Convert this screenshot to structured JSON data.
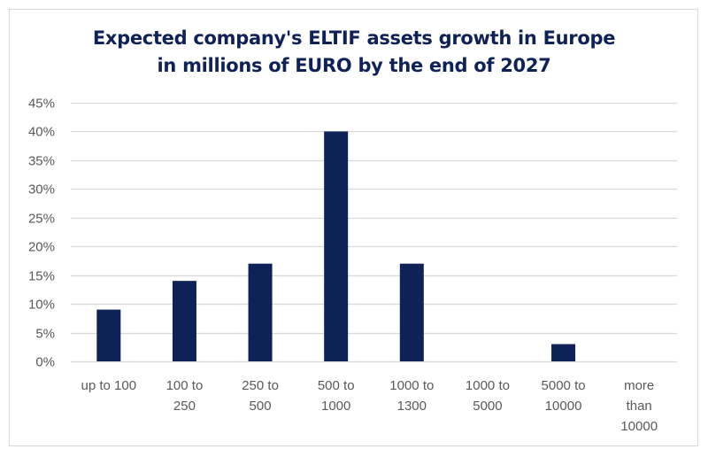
{
  "chart_data": {
    "type": "bar",
    "title": "Expected company's ELTIF assets growth in Europe in millions of EURO by the end of 2027",
    "title_lines": [
      "Expected company's ELTIF assets growth in Europe",
      "in millions of EURO by the end of 2027"
    ],
    "xlabel": "",
    "ylabel": "",
    "categories": [
      "up to 100",
      "100 to 250",
      "250 to 500",
      "500 to 1000",
      "1000 to 1300",
      "1000 to 5000",
      "5000 to 10000",
      "more than 10000"
    ],
    "category_lines": [
      [
        "up to 100"
      ],
      [
        "100 to",
        "250"
      ],
      [
        "250 to",
        "500"
      ],
      [
        "500 to",
        "1000"
      ],
      [
        "1000 to",
        "1300"
      ],
      [
        "1000 to",
        "5000"
      ],
      [
        "5000 to",
        "10000"
      ],
      [
        "more",
        "than",
        "10000"
      ]
    ],
    "values": [
      9,
      14,
      17,
      40,
      17,
      0,
      3,
      0
    ],
    "unit": "%",
    "ylim": [
      0,
      45
    ],
    "yticks": [
      0,
      5,
      10,
      15,
      20,
      25,
      30,
      35,
      40,
      45
    ],
    "ytick_labels": [
      "0%",
      "5%",
      "10%",
      "15%",
      "20%",
      "25%",
      "30%",
      "35%",
      "40%",
      "45%"
    ],
    "grid": true,
    "legend": "none",
    "colors": {
      "bar": "#0f2257",
      "grid": "#d9d9d9",
      "title": "#0f2257",
      "tick": "#595959"
    }
  }
}
